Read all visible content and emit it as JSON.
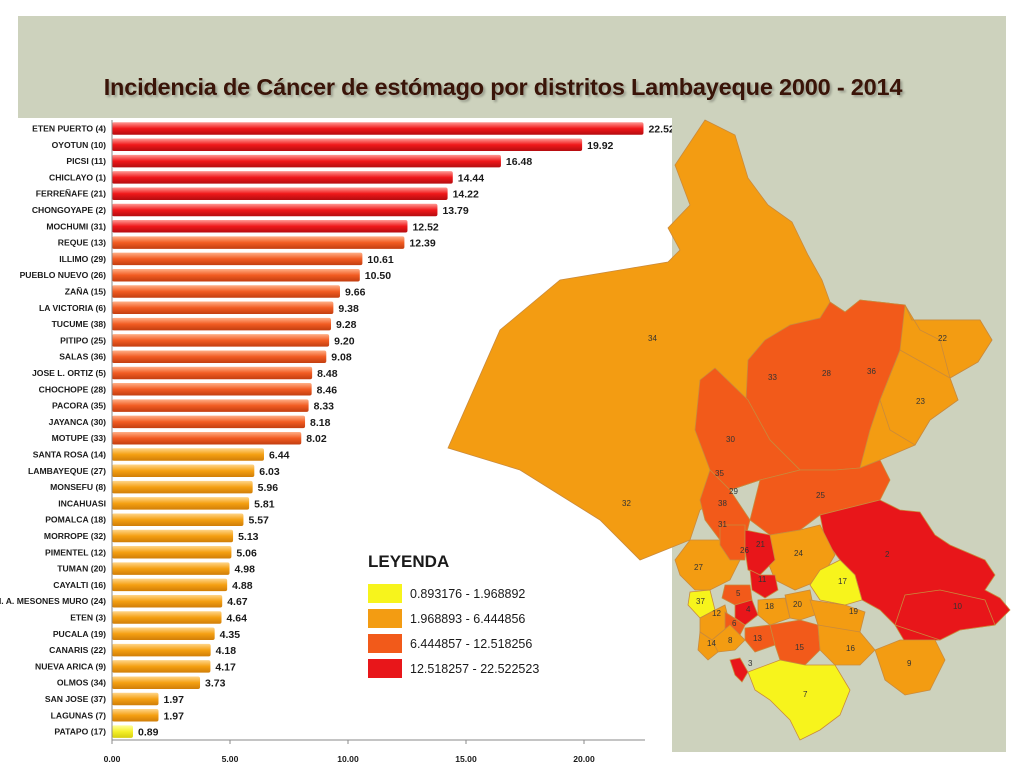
{
  "title": "Incidencia de Cáncer de estómago por distritos Lambayeque 2000 - 2014",
  "chart_data": {
    "type": "bar",
    "orientation": "horizontal",
    "title": "Incidencia de Cáncer de estómago por distritos Lambayeque 2000 - 2014",
    "xlabel": "",
    "ylabel": "",
    "xlim": [
      0,
      22.52
    ],
    "xticks": [
      "0.00",
      "5.00",
      "10.00",
      "15.00",
      "20.00"
    ],
    "categories": [
      "ETEN PUERTO (4)",
      "OYOTUN (10)",
      "PICSI (11)",
      "CHICLAYO (1)",
      "FERREÑAFE (21)",
      "CHONGOYAPE (2)",
      "MOCHUMI (31)",
      "REQUE (13)",
      "ILLIMO (29)",
      "PUEBLO NUEVO (26)",
      "ZAÑA (15)",
      "LA VICTORIA (6)",
      "TUCUME (38)",
      "PITIPO (25)",
      "SALAS (36)",
      "JOSE L. ORTIZ (5)",
      "CHOCHOPE (28)",
      "PACORA (35)",
      "JAYANCA (30)",
      "MOTUPE (33)",
      "SANTA ROSA (14)",
      "LAMBAYEQUE (27)",
      "MONSEFU (8)",
      "INCAHUASI",
      "POMALCA (18)",
      "MORROPE (32)",
      "PIMENTEL (12)",
      "TUMAN (20)",
      "CAYALTI (16)",
      "M. A. MESONES MURO (24)",
      "ETEN (3)",
      "PUCALA (19)",
      "CANARIS (22)",
      "NUEVA ARICA (9)",
      "OLMOS (34)",
      "SAN JOSE (37)",
      "LAGUNAS (7)",
      "PATAPO (17)"
    ],
    "values": [
      22.52,
      19.92,
      16.48,
      14.44,
      14.22,
      13.79,
      12.52,
      12.39,
      10.61,
      10.5,
      9.66,
      9.38,
      9.28,
      9.2,
      9.08,
      8.48,
      8.46,
      8.33,
      8.18,
      8.02,
      6.44,
      6.03,
      5.96,
      5.81,
      5.57,
      5.13,
      5.06,
      4.98,
      4.88,
      4.67,
      4.64,
      4.35,
      4.18,
      4.17,
      3.73,
      1.97,
      1.97,
      0.89
    ],
    "value_labels": [
      "22.52",
      "19.92",
      "16.48",
      "14.44",
      "14.22",
      "13.79",
      "12.52",
      "12.39",
      "10.61",
      "10.50",
      "9.66",
      "9.38",
      "9.28",
      "9.20",
      "9.08",
      "8.48",
      "8.46",
      "8.33",
      "8.18",
      "8.02",
      "6.44",
      "6.03",
      "5.96",
      "5.81",
      "5.57",
      "5.13",
      "5.06",
      "4.98",
      "4.88",
      "4.67",
      "4.64",
      "4.35",
      "4.18",
      "4.17",
      "3.73",
      "1.97",
      "1.97",
      "0.89"
    ],
    "grid": false,
    "legend_placement": "bottom-right",
    "colors": {
      "class1": "#f5f222",
      "class2": "#f39c12",
      "class3": "#f25a1a",
      "class4": "#e8161a"
    }
  },
  "legend": {
    "title": "LEYENDA",
    "items": [
      {
        "label": "0.893176 - 1.968892",
        "color": "#f7f41c"
      },
      {
        "label": "1.968893 - 6.444856",
        "color": "#f39c12"
      },
      {
        "label": "6.444857 - 12.518256",
        "color": "#f25a1a"
      },
      {
        "label": "12.518257 - 22.522523",
        "color": "#e8161a"
      }
    ]
  },
  "map": {
    "district_numbers": [
      "34",
      "22",
      "33",
      "28",
      "36",
      "23",
      "30",
      "35",
      "29",
      "25",
      "38",
      "32",
      "31",
      "26",
      "21",
      "24",
      "2",
      "27",
      "11",
      "17",
      "37",
      "5",
      "12",
      "4",
      "18",
      "20",
      "19",
      "10",
      "6",
      "8",
      "13",
      "14",
      "15",
      "16",
      "9",
      "3",
      "7"
    ]
  }
}
